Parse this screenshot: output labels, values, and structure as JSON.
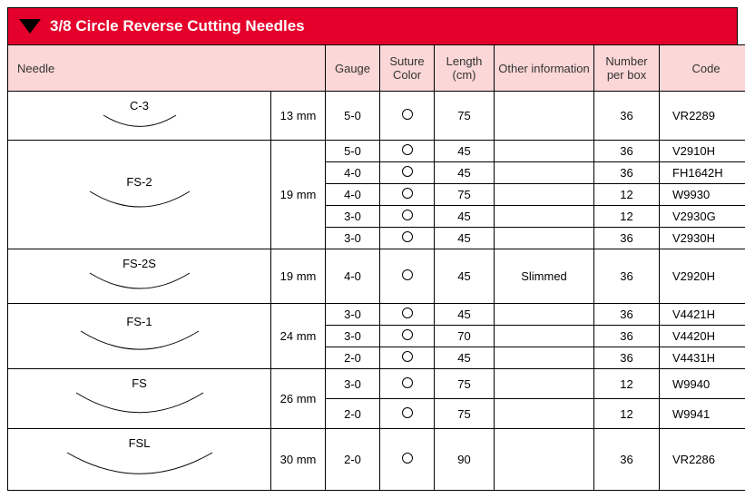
{
  "title": "3/8 Circle Reverse Cutting Needles",
  "columns": {
    "needle": "Needle",
    "gauge": "Gauge",
    "color": "Suture Color",
    "length": "Length (cm)",
    "other": "Other information",
    "num": "Number per box",
    "code": "Code"
  },
  "needles": {
    "c3": {
      "name": "C-3",
      "size": "13 mm",
      "arc_w": 80,
      "arc_h": 16
    },
    "fs2": {
      "name": "FS-2",
      "size": "19 mm",
      "arc_w": 110,
      "arc_h": 22
    },
    "fs2s": {
      "name": "FS-2S",
      "size": "19 mm",
      "arc_w": 110,
      "arc_h": 22
    },
    "fs1": {
      "name": "FS-1",
      "size": "24 mm",
      "arc_w": 130,
      "arc_h": 26
    },
    "fs": {
      "name": "FS",
      "size": "26 mm",
      "arc_w": 140,
      "arc_h": 28
    },
    "fsl": {
      "name": "FSL",
      "size": "30 mm",
      "arc_w": 160,
      "arc_h": 30
    }
  },
  "rows": [
    {
      "g": "5-0",
      "len": "75",
      "other": "",
      "num": "36",
      "code": "VR2289"
    },
    {
      "g": "5-0",
      "len": "45",
      "other": "",
      "num": "36",
      "code": "V2910H"
    },
    {
      "g": "4-0",
      "len": "45",
      "other": "",
      "num": "36",
      "code": "FH1642H"
    },
    {
      "g": "4-0",
      "len": "75",
      "other": "",
      "num": "12",
      "code": "W9930"
    },
    {
      "g": "3-0",
      "len": "45",
      "other": "",
      "num": "12",
      "code": "V2930G"
    },
    {
      "g": "3-0",
      "len": "45",
      "other": "",
      "num": "36",
      "code": "V2930H"
    },
    {
      "g": "4-0",
      "len": "45",
      "other": "Slimmed",
      "num": "36",
      "code": "V2920H"
    },
    {
      "g": "3-0",
      "len": "45",
      "other": "",
      "num": "36",
      "code": "V4421H"
    },
    {
      "g": "3-0",
      "len": "70",
      "other": "",
      "num": "36",
      "code": "V4420H"
    },
    {
      "g": "2-0",
      "len": "45",
      "other": "",
      "num": "36",
      "code": "V4431H"
    },
    {
      "g": "3-0",
      "len": "75",
      "other": "",
      "num": "12",
      "code": "W9940"
    },
    {
      "g": "2-0",
      "len": "75",
      "other": "",
      "num": "12",
      "code": "W9941"
    },
    {
      "g": "2-0",
      "len": "90",
      "other": "",
      "num": "36",
      "code": "VR2286"
    }
  ],
  "groups": [
    {
      "needle": "c3",
      "rowspan": 1,
      "start": 0
    },
    {
      "needle": "fs2",
      "rowspan": 5,
      "start": 1
    },
    {
      "needle": "fs2s",
      "rowspan": 1,
      "start": 6
    },
    {
      "needle": "fs1",
      "rowspan": 3,
      "start": 7
    },
    {
      "needle": "fs",
      "rowspan": 2,
      "start": 10
    },
    {
      "needle": "fsl",
      "rowspan": 1,
      "start": 12
    }
  ],
  "style": {
    "header_bg": "#e4002b",
    "row_header_bg": "#fcd7d7",
    "border_color": "#000000"
  }
}
